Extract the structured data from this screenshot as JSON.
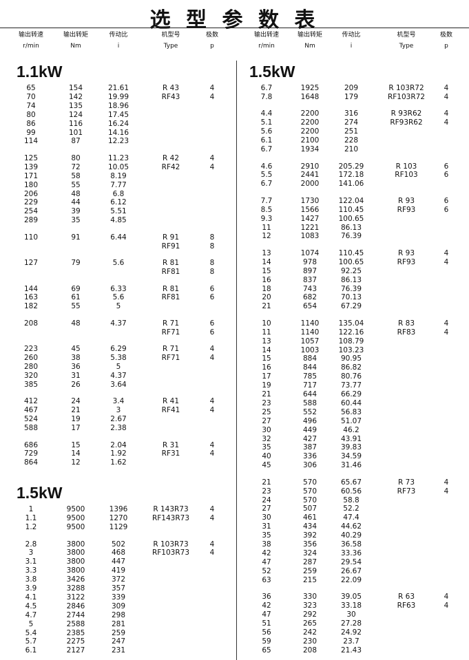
{
  "title": "选 型 参 数 表",
  "headers": [
    {
      "name": "输出转速",
      "unit": "r/min"
    },
    {
      "name": "输出转矩",
      "unit": "Nm"
    },
    {
      "name": "传动比",
      "unit": "i"
    },
    {
      "name": "机型号",
      "unit": "Type"
    },
    {
      "name": "极数",
      "unit": "p"
    }
  ],
  "columns": [
    {
      "sections": [
        {
          "power": "1.1kW",
          "groups": [
            [
              {
                "speed": "65",
                "torque": "154",
                "ratio": "21.61",
                "type": "R 43",
                "poles": "4"
              },
              {
                "speed": "70",
                "torque": "142",
                "ratio": "19.99",
                "type": "RF43",
                "poles": "4"
              },
              {
                "speed": "74",
                "torque": "135",
                "ratio": "18.96"
              },
              {
                "speed": "80",
                "torque": "124",
                "ratio": "17.45"
              },
              {
                "speed": "86",
                "torque": "116",
                "ratio": "16.24"
              },
              {
                "speed": "99",
                "torque": "101",
                "ratio": "14.16"
              },
              {
                "speed": "114",
                "torque": "87",
                "ratio": "12.23"
              }
            ],
            [
              {
                "speed": "125",
                "torque": "80",
                "ratio": "11.23",
                "type": "R 42",
                "poles": "4"
              },
              {
                "speed": "139",
                "torque": "72",
                "ratio": "10.05",
                "type": "RF42",
                "poles": "4"
              },
              {
                "speed": "171",
                "torque": "58",
                "ratio": "8.19"
              },
              {
                "speed": "180",
                "torque": "55",
                "ratio": "7.77"
              },
              {
                "speed": "206",
                "torque": "48",
                "ratio": "6.8"
              },
              {
                "speed": "229",
                "torque": "44",
                "ratio": "6.12"
              },
              {
                "speed": "254",
                "torque": "39",
                "ratio": "5.51"
              },
              {
                "speed": "289",
                "torque": "35",
                "ratio": "4.85"
              }
            ],
            [
              {
                "speed": "110",
                "torque": "91",
                "ratio": "6.44",
                "type": "R 91",
                "poles": "8"
              },
              {
                "type": "RF91",
                "poles": "8"
              }
            ],
            [
              {
                "speed": "127",
                "torque": "79",
                "ratio": "5.6",
                "type": "R 81",
                "poles": "8"
              },
              {
                "type": "RF81",
                "poles": "8"
              }
            ],
            [
              {
                "speed": "144",
                "torque": "69",
                "ratio": "6.33",
                "type": "R 81",
                "poles": "6"
              },
              {
                "speed": "163",
                "torque": "61",
                "ratio": "5.6",
                "type": "RF81",
                "poles": "6"
              },
              {
                "speed": "182",
                "torque": "55",
                "ratio": "5"
              }
            ],
            [
              {
                "speed": "208",
                "torque": "48",
                "ratio": "4.37",
                "type": "R 71",
                "poles": "6"
              },
              {
                "type": "RF71",
                "poles": "6"
              }
            ],
            [
              {
                "speed": "223",
                "torque": "45",
                "ratio": "6.29",
                "type": "R 71",
                "poles": "4"
              },
              {
                "speed": "260",
                "torque": "38",
                "ratio": "5.38",
                "type": "RF71",
                "poles": "4"
              },
              {
                "speed": "280",
                "torque": "36",
                "ratio": "5"
              },
              {
                "speed": "320",
                "torque": "31",
                "ratio": "4.37"
              },
              {
                "speed": "385",
                "torque": "26",
                "ratio": "3.64"
              }
            ],
            [
              {
                "speed": "412",
                "torque": "24",
                "ratio": "3.4",
                "type": "R 41",
                "poles": "4"
              },
              {
                "speed": "467",
                "torque": "21",
                "ratio": "3",
                "type": "RF41",
                "poles": "4"
              },
              {
                "speed": "524",
                "torque": "19",
                "ratio": "2.67"
              },
              {
                "speed": "588",
                "torque": "17",
                "ratio": "2.38"
              }
            ],
            [
              {
                "speed": "686",
                "torque": "15",
                "ratio": "2.04",
                "type": "R 31",
                "poles": "4"
              },
              {
                "speed": "729",
                "torque": "14",
                "ratio": "1.92",
                "type": "RF31",
                "poles": "4"
              },
              {
                "speed": "864",
                "torque": "12",
                "ratio": "1.62"
              }
            ]
          ]
        },
        {
          "power": "1.5kW",
          "groups": [
            [
              {
                "speed": "1",
                "torque": "9500",
                "ratio": "1396",
                "type": "R 143R73",
                "poles": "4"
              },
              {
                "speed": "1.1",
                "torque": "9500",
                "ratio": "1270",
                "type": "RF143R73",
                "poles": "4"
              },
              {
                "speed": "1.2",
                "torque": "9500",
                "ratio": "1129"
              }
            ],
            [
              {
                "speed": "2.8",
                "torque": "3800",
                "ratio": "502",
                "type": "R 103R73",
                "poles": "4"
              },
              {
                "speed": "3",
                "torque": "3800",
                "ratio": "468",
                "type": "RF103R73",
                "poles": "4"
              },
              {
                "speed": "3.1",
                "torque": "3800",
                "ratio": "447"
              },
              {
                "speed": "3.3",
                "torque": "3800",
                "ratio": "419"
              },
              {
                "speed": "3.8",
                "torque": "3426",
                "ratio": "372"
              },
              {
                "speed": "3.9",
                "torque": "3288",
                "ratio": "357"
              },
              {
                "speed": "4.1",
                "torque": "3122",
                "ratio": "339"
              },
              {
                "speed": "4.5",
                "torque": "2846",
                "ratio": "309"
              },
              {
                "speed": "4.7",
                "torque": "2744",
                "ratio": "298"
              },
              {
                "speed": "5",
                "torque": "2588",
                "ratio": "281"
              },
              {
                "speed": "5.4",
                "torque": "2385",
                "ratio": "259"
              },
              {
                "speed": "5.7",
                "torque": "2275",
                "ratio": "247"
              },
              {
                "speed": "6.1",
                "torque": "2127",
                "ratio": "231"
              }
            ]
          ]
        }
      ]
    },
    {
      "sections": [
        {
          "power": "1.5kW",
          "groups": [
            [
              {
                "speed": "6.7",
                "torque": "1925",
                "ratio": "209",
                "type": "R 103R72",
                "poles": "4"
              },
              {
                "speed": "7.8",
                "torque": "1648",
                "ratio": "179",
                "type": "RF103R72",
                "poles": "4"
              }
            ],
            [
              {
                "speed": "4.4",
                "torque": "2200",
                "ratio": "316",
                "type": "R 93R62",
                "poles": "4"
              },
              {
                "speed": "5.1",
                "torque": "2200",
                "ratio": "274",
                "type": "RF93R62",
                "poles": "4"
              },
              {
                "speed": "5.6",
                "torque": "2200",
                "ratio": "251"
              },
              {
                "speed": "6.1",
                "torque": "2100",
                "ratio": "228"
              },
              {
                "speed": "6.7",
                "torque": "1934",
                "ratio": "210"
              }
            ],
            [
              {
                "speed": "4.6",
                "torque": "2910",
                "ratio": "205.29",
                "type": "R 103",
                "poles": "6"
              },
              {
                "speed": "5.5",
                "torque": "2441",
                "ratio": "172.18",
                "type": "RF103",
                "poles": "6"
              },
              {
                "speed": "6.7",
                "torque": "2000",
                "ratio": "141.06"
              }
            ],
            [
              {
                "speed": "7.7",
                "torque": "1730",
                "ratio": "122.04",
                "type": "R 93",
                "poles": "6"
              },
              {
                "speed": "8.5",
                "torque": "1566",
                "ratio": "110.45",
                "type": "RF93",
                "poles": "6"
              },
              {
                "speed": "9.3",
                "torque": "1427",
                "ratio": "100.65"
              },
              {
                "speed": "11",
                "torque": "1221",
                "ratio": "86.13"
              },
              {
                "speed": "12",
                "torque": "1083",
                "ratio": "76.39"
              }
            ],
            [
              {
                "speed": "13",
                "torque": "1074",
                "ratio": "110.45",
                "type": "R 93",
                "poles": "4"
              },
              {
                "speed": "14",
                "torque": "978",
                "ratio": "100.65",
                "type": "RF93",
                "poles": "4"
              },
              {
                "speed": "15",
                "torque": "897",
                "ratio": "92.25"
              },
              {
                "speed": "16",
                "torque": "837",
                "ratio": "86.13"
              },
              {
                "speed": "18",
                "torque": "743",
                "ratio": "76.39"
              },
              {
                "speed": "20",
                "torque": "682",
                "ratio": "70.13"
              },
              {
                "speed": "21",
                "torque": "654",
                "ratio": "67.29"
              }
            ],
            [
              {
                "speed": "10",
                "torque": "1140",
                "ratio": "135.04",
                "type": "R 83",
                "poles": "4"
              },
              {
                "speed": "11",
                "torque": "1140",
                "ratio": "122.16",
                "type": "RF83",
                "poles": "4"
              },
              {
                "speed": "13",
                "torque": "1057",
                "ratio": "108.79"
              },
              {
                "speed": "14",
                "torque": "1003",
                "ratio": "103.23"
              },
              {
                "speed": "15",
                "torque": "884",
                "ratio": "90.95"
              },
              {
                "speed": "16",
                "torque": "844",
                "ratio": "86.82"
              },
              {
                "speed": "17",
                "torque": "785",
                "ratio": "80.76"
              },
              {
                "speed": "19",
                "torque": "717",
                "ratio": "73.77"
              },
              {
                "speed": "21",
                "torque": "644",
                "ratio": "66.29"
              },
              {
                "speed": "23",
                "torque": "588",
                "ratio": "60.44"
              },
              {
                "speed": "25",
                "torque": "552",
                "ratio": "56.83"
              },
              {
                "speed": "27",
                "torque": "496",
                "ratio": "51.07"
              },
              {
                "speed": "30",
                "torque": "449",
                "ratio": "46.2"
              },
              {
                "speed": "32",
                "torque": "427",
                "ratio": "43.91"
              },
              {
                "speed": "35",
                "torque": "387",
                "ratio": "39.83"
              },
              {
                "speed": "40",
                "torque": "336",
                "ratio": "34.59"
              },
              {
                "speed": "45",
                "torque": "306",
                "ratio": "31.46"
              }
            ],
            [
              {
                "speed": "21",
                "torque": "570",
                "ratio": "65.67",
                "type": "R 73",
                "poles": "4"
              },
              {
                "speed": "23",
                "torque": "570",
                "ratio": "60.56",
                "type": "RF73",
                "poles": "4"
              },
              {
                "speed": "24",
                "torque": "570",
                "ratio": "58.8"
              },
              {
                "speed": "27",
                "torque": "507",
                "ratio": "52.2"
              },
              {
                "speed": "30",
                "torque": "461",
                "ratio": "47.4"
              },
              {
                "speed": "31",
                "torque": "434",
                "ratio": "44.62"
              },
              {
                "speed": "35",
                "torque": "392",
                "ratio": "40.29"
              },
              {
                "speed": "38",
                "torque": "356",
                "ratio": "36.58"
              },
              {
                "speed": "42",
                "torque": "324",
                "ratio": "33.36"
              },
              {
                "speed": "47",
                "torque": "287",
                "ratio": "29.54"
              },
              {
                "speed": "52",
                "torque": "259",
                "ratio": "26.67"
              },
              {
                "speed": "63",
                "torque": "215",
                "ratio": "22.09"
              }
            ],
            [
              {
                "speed": "36",
                "torque": "330",
                "ratio": "39.05",
                "type": "R 63",
                "poles": "4"
              },
              {
                "speed": "42",
                "torque": "323",
                "ratio": "33.18",
                "type": "RF63",
                "poles": "4"
              },
              {
                "speed": "47",
                "torque": "292",
                "ratio": "30"
              },
              {
                "speed": "51",
                "torque": "265",
                "ratio": "27.28"
              },
              {
                "speed": "56",
                "torque": "242",
                "ratio": "24.92"
              },
              {
                "speed": "59",
                "torque": "230",
                "ratio": "23.7"
              },
              {
                "speed": "65",
                "torque": "208",
                "ratio": "21.43"
              }
            ]
          ]
        }
      ]
    }
  ]
}
